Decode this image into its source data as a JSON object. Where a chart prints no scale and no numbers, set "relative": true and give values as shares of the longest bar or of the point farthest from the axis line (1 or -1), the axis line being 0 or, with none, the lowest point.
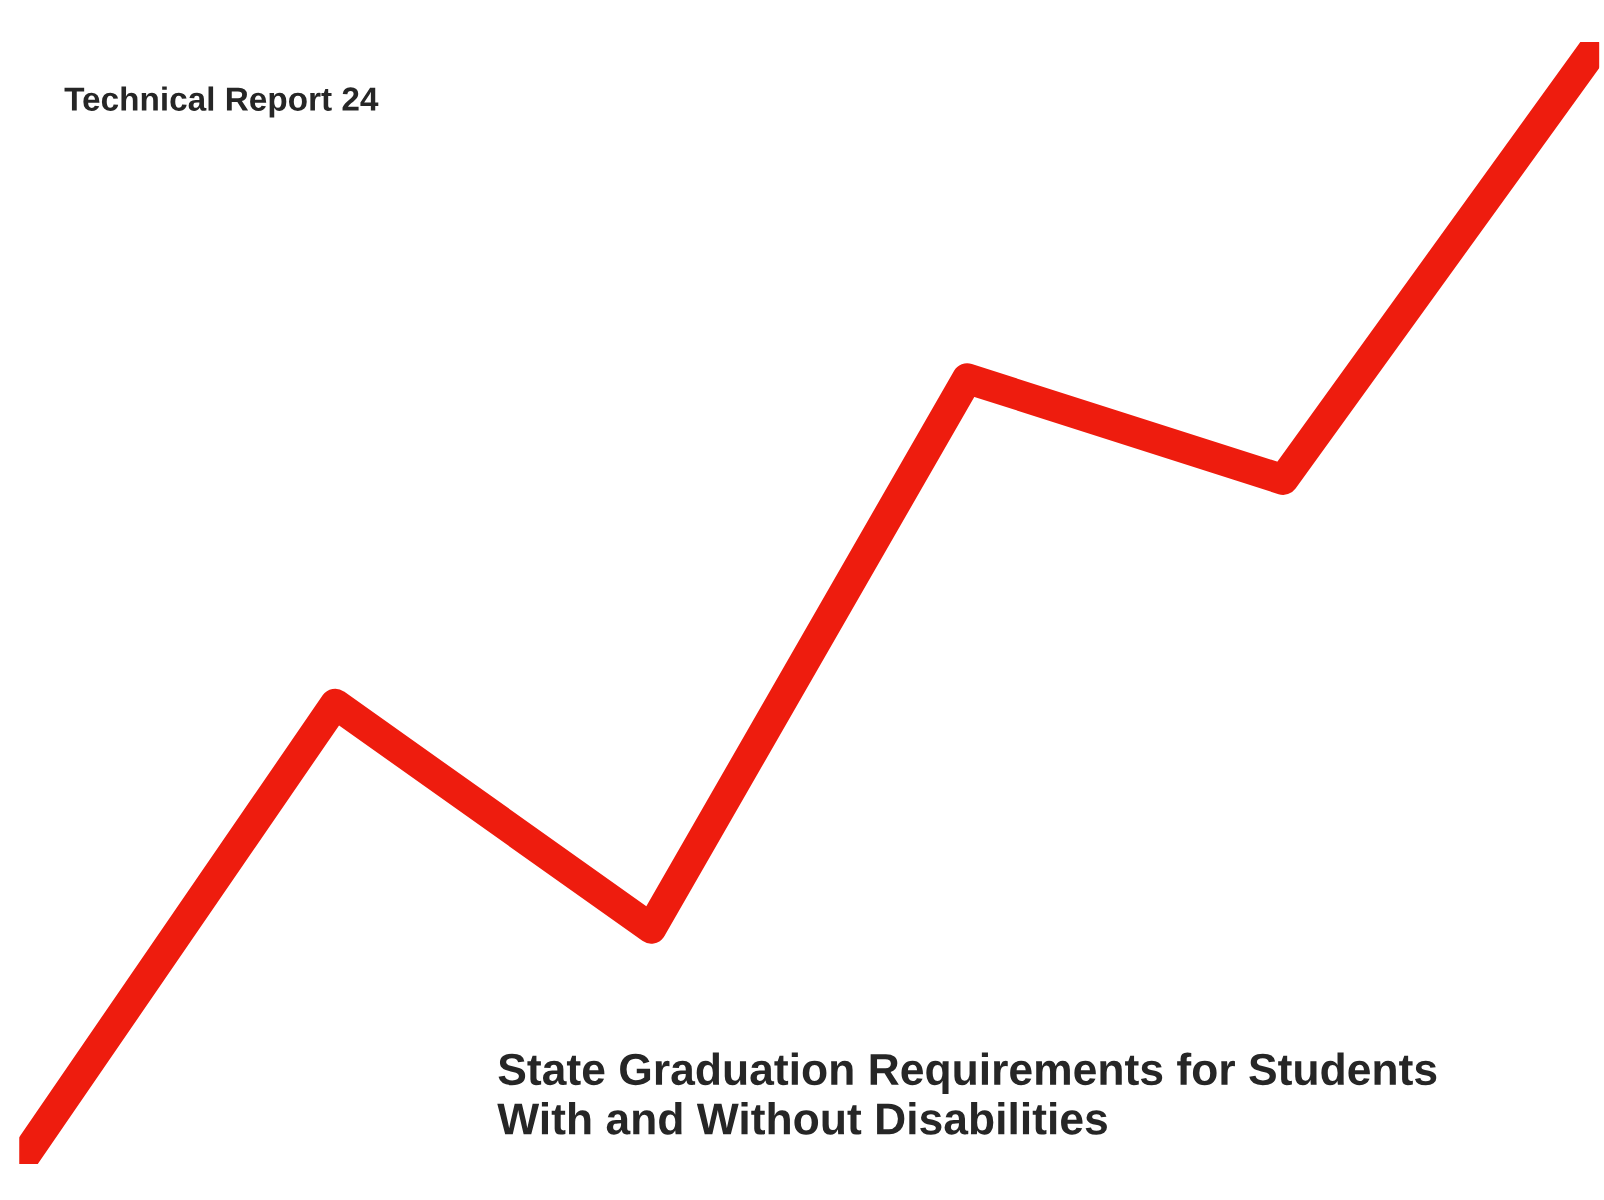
{
  "chart_data": {
    "type": "line",
    "relative": true,
    "title": "State Graduation Requirements for Students With and Without Disabilities",
    "subtitle": "Technical Report 24",
    "categories": [
      null,
      null,
      null,
      null,
      null,
      null
    ],
    "series": [
      {
        "color": "#ee1c0e",
        "values": [
          0,
          0.41,
          0.21,
          0.7,
          0.61,
          1
        ]
      }
    ],
    "grid": false,
    "legend": false,
    "marker": "none",
    "line_style": "solid"
  }
}
